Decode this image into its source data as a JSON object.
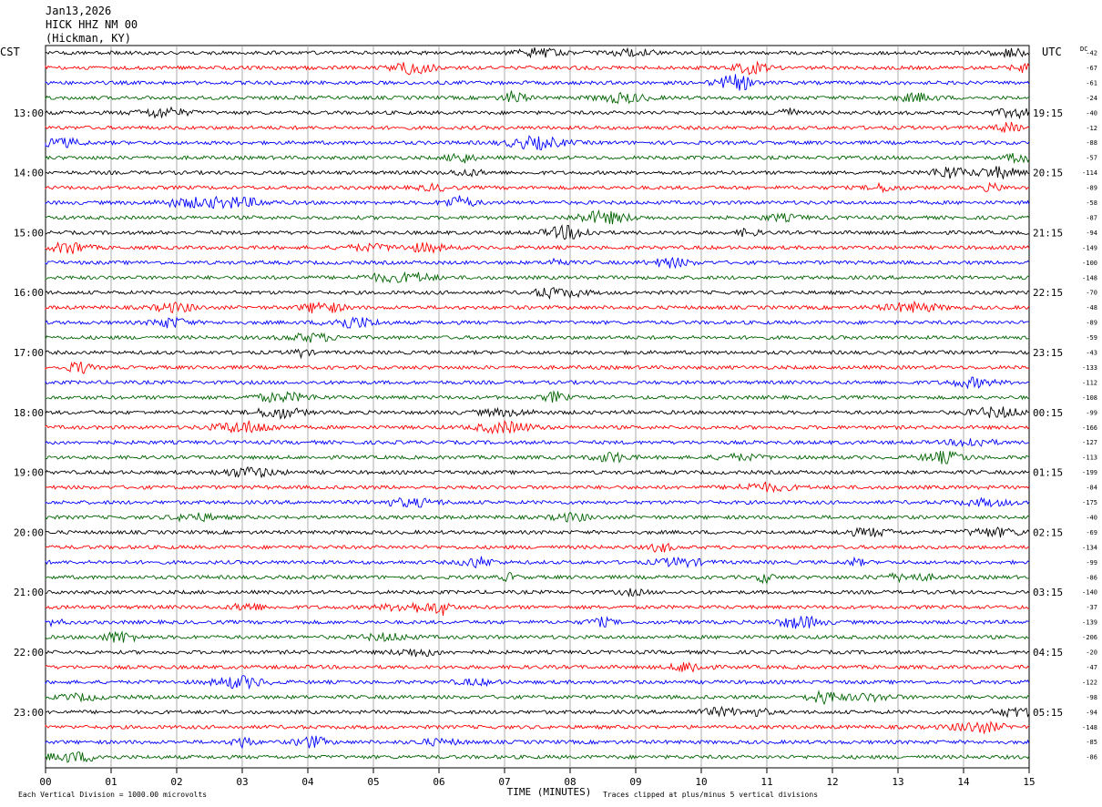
{
  "header": {
    "date": "Jan13,2026",
    "station": "HICK HHZ NM 00",
    "location": "(Hickman, KY)"
  },
  "axes": {
    "left_zone": "CST",
    "right_zone": "UTC",
    "dc_label": "DC"
  },
  "footer": {
    "scale_note": "Each Vertical Division = 1000.00 microvolts",
    "clip_note": "Traces clipped at plus/minus 5 vertical divisions"
  },
  "chart_data": {
    "type": "line",
    "title": "",
    "xlabel": "TIME (MINUTES)",
    "ylabel": "",
    "xlim": [
      0,
      15
    ],
    "grid": true,
    "x_ticks": [
      "00",
      "01",
      "02",
      "03",
      "04",
      "05",
      "06",
      "07",
      "08",
      "09",
      "10",
      "11",
      "12",
      "13",
      "14",
      "15"
    ],
    "left_hour_labels": [
      "13:00",
      "14:00",
      "15:00",
      "16:00",
      "17:00",
      "18:00",
      "19:00",
      "20:00",
      "21:00",
      "22:00",
      "23:00"
    ],
    "right_hour_labels": [
      "19:15",
      "20:15",
      "21:15",
      "22:15",
      "23:15",
      "00:15",
      "01:15",
      "02:15",
      "03:15",
      "04:15",
      "05:15"
    ],
    "trace_colors": [
      "#000000",
      "#ff0000",
      "#0000ff",
      "#006400"
    ],
    "traces_count": 48,
    "dc_offsets": [
      -42,
      -67,
      -61,
      -24,
      -40,
      -12,
      -88,
      -57,
      -114,
      -89,
      -58,
      -87,
      -94,
      -149,
      -100,
      -148,
      -70,
      -48,
      -89,
      -59,
      -43,
      -133,
      -112,
      -108,
      -99,
      -166,
      -127,
      -113,
      -199,
      -84,
      -175,
      -40,
      -69,
      -134,
      -99,
      -86,
      -140,
      -37,
      -139,
      -206,
      -20,
      -47,
      -122,
      -98,
      -94,
      -148,
      -85,
      -86
    ]
  }
}
